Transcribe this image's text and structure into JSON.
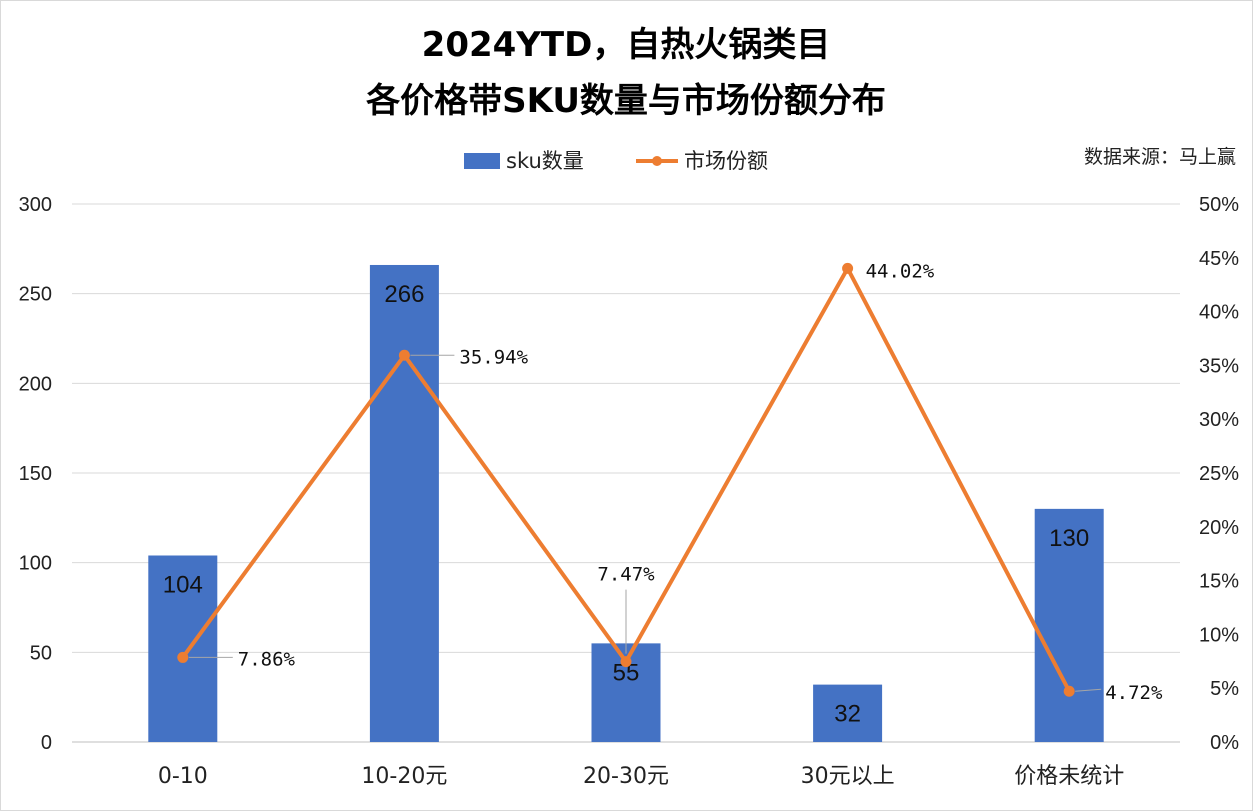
{
  "chart_data": {
    "type": "bar",
    "title_line1": "2024YTD，自热火锅类目",
    "title_line2": "各价格带SKU数量与市场份额分布",
    "source": "数据来源：马上赢",
    "categories": [
      "0-10",
      "10-20元",
      "20-30元",
      "30元以上",
      "价格未统计"
    ],
    "series": [
      {
        "name": "sku数量",
        "type": "bar",
        "axis": "left",
        "color": "#4472C4",
        "values": [
          104,
          266,
          55,
          32,
          130
        ],
        "labels": [
          "104",
          "266",
          "55",
          "32",
          "130"
        ]
      },
      {
        "name": "市场份额",
        "type": "line",
        "axis": "right",
        "color": "#ED7D31",
        "values": [
          7.86,
          35.94,
          7.47,
          44.02,
          4.72
        ],
        "labels": [
          "7.86%",
          "35.94%",
          "7.47%",
          "44.02%",
          "4.72%"
        ]
      }
    ],
    "y_left": {
      "min": 0,
      "max": 300,
      "ticks": [
        "0",
        "50",
        "100",
        "150",
        "200",
        "250",
        "300"
      ]
    },
    "y_right": {
      "min": 0,
      "max": 50,
      "ticks": [
        "0%",
        "5%",
        "10%",
        "15%",
        "20%",
        "25%",
        "30%",
        "35%",
        "40%",
        "45%",
        "50%"
      ]
    },
    "grid": true,
    "legend_position": "top-center"
  }
}
